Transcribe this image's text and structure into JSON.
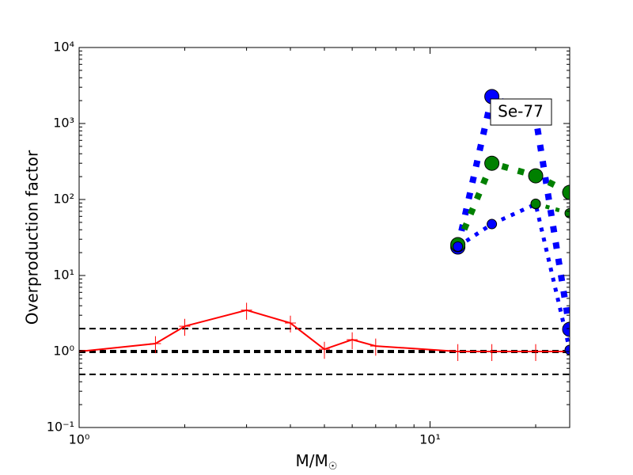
{
  "chart_data": {
    "type": "line",
    "xlabel": "M/M",
    "xlabel_sub": "☉",
    "ylabel": "Overproduction factor",
    "annotation": "Se-77",
    "xscale": "log",
    "yscale": "log",
    "xlim": [
      1,
      25
    ],
    "ylim": [
      0.1,
      10000
    ],
    "xticks": [
      {
        "value": 1,
        "label": "10⁰"
      },
      {
        "value": 10,
        "label": "10¹"
      }
    ],
    "yticks": [
      {
        "value": 0.1,
        "label": "10⁻¹"
      },
      {
        "value": 1,
        "label": "10⁰"
      },
      {
        "value": 10,
        "label": "10¹"
      },
      {
        "value": 100,
        "label": "10²"
      },
      {
        "value": 1000,
        "label": "10³"
      },
      {
        "value": 10000,
        "label": "10⁴"
      }
    ],
    "hlines": [
      0.5,
      1,
      2
    ],
    "hline_widths": [
      2,
      4,
      2
    ],
    "series": [
      {
        "color": "#ff0000",
        "linestyle": "solid",
        "linewidth": 2,
        "marker": "plus",
        "x": [
          1,
          1.65,
          2,
          3,
          4,
          5,
          6,
          7,
          12,
          15,
          20,
          25
        ],
        "values": [
          1.0,
          1.27,
          2.15,
          3.5,
          2.37,
          1.07,
          1.43,
          1.18,
          1.0,
          1.0,
          1.0,
          1.0
        ],
        "yerr": [
          0.25,
          0.32,
          0.54,
          0.88,
          0.59,
          0.27,
          0.36,
          0.3,
          0.25,
          0.25,
          0.25,
          0.25
        ]
      },
      {
        "color": "#0000ff",
        "linestyle": "dotted",
        "linewidth": 8,
        "marker": "circle",
        "marker_size": 9,
        "x": [
          12,
          15,
          20,
          25
        ],
        "values": [
          23.7,
          2260,
          1200,
          1.96
        ]
      },
      {
        "color": "#008000",
        "linestyle": "dotted",
        "linewidth": 8,
        "marker": "circle",
        "marker_size": 9,
        "x": [
          12,
          15,
          20,
          25
        ],
        "values": [
          25.5,
          300,
          205,
          124
        ]
      },
      {
        "color": "#0000ff",
        "linestyle": "dotted",
        "linewidth": 5,
        "marker": "circle",
        "marker_size": 6,
        "x": [
          12,
          15,
          20,
          25
        ],
        "values": [
          24,
          47.5,
          87,
          1.05
        ]
      },
      {
        "color": "#008000",
        "linestyle": "dotted",
        "linewidth": 5,
        "marker": "circle",
        "marker_size": 6,
        "x": [
          12,
          15,
          20,
          25
        ],
        "values": [
          null,
          null,
          88,
          66
        ]
      }
    ]
  }
}
